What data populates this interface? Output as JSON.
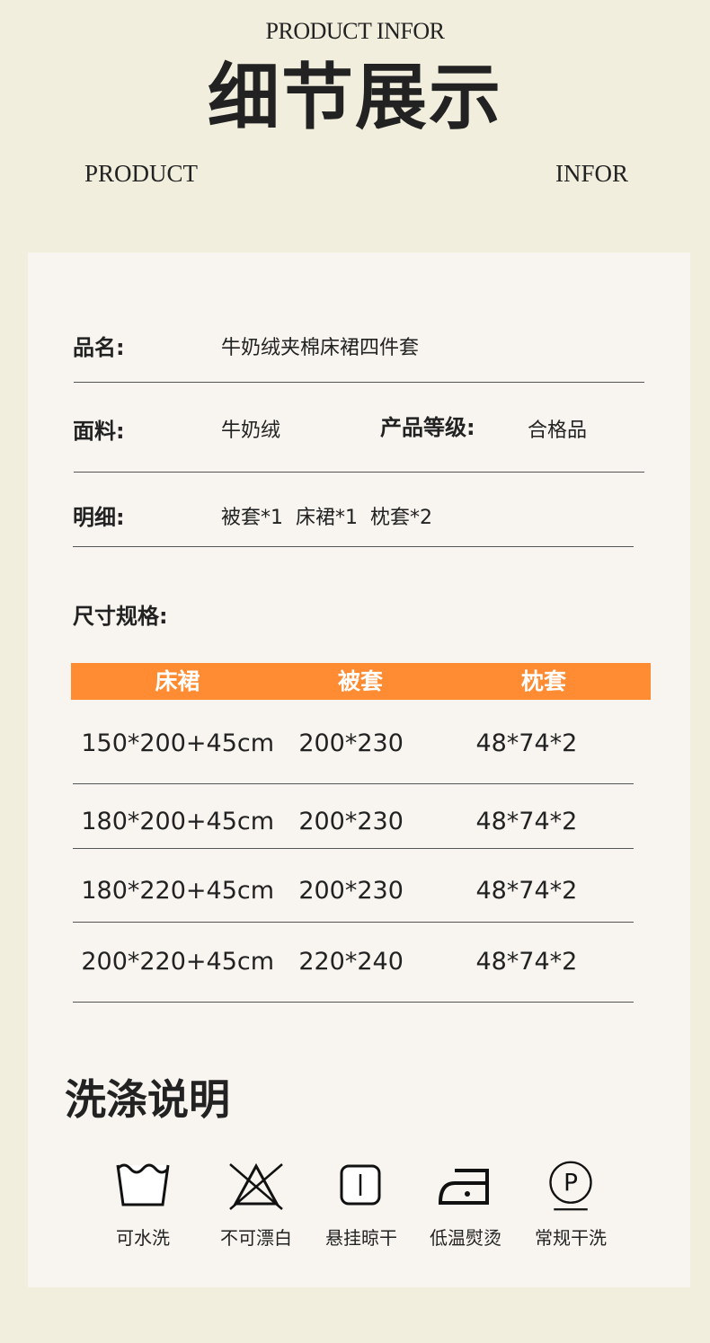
{
  "header": {
    "subtitle_en": "PRODUCT INFOR",
    "title": "细节展示",
    "left_en": "PRODUCT",
    "right_en": "INFOR"
  },
  "info": {
    "name_label": "品名:",
    "name_value": "牛奶绒夹棉床裙四件套",
    "fabric_label": "面料:",
    "fabric_value": "牛奶绒",
    "grade_label": "产品等级:",
    "grade_value": "合格品",
    "detail_label": "明细:",
    "detail_value": "被套*1  床裙*1  枕套*2",
    "size_label": "尺寸规格:"
  },
  "size_table": {
    "headers": [
      "床裙",
      "被套",
      "枕套"
    ],
    "rows": [
      [
        "150*200+45cm",
        "200*230",
        "48*74*2"
      ],
      [
        "180*200+45cm",
        "200*230",
        "48*74*2"
      ],
      [
        "180*220+45cm",
        "200*230",
        "48*74*2"
      ],
      [
        "200*220+45cm",
        "220*240",
        "48*74*2"
      ]
    ]
  },
  "care": {
    "title": "洗涤说明",
    "items": [
      {
        "icon": "washable-icon",
        "label": "可水洗"
      },
      {
        "icon": "no-bleach-icon",
        "label": "不可漂白"
      },
      {
        "icon": "hang-dry-icon",
        "label": "悬挂晾干"
      },
      {
        "icon": "low-iron-icon",
        "label": "低温熨烫"
      },
      {
        "icon": "dry-clean-p-icon",
        "label": "常规干洗"
      }
    ]
  },
  "colors": {
    "background": "#f1eedd",
    "card": "#f8f5f0",
    "accent": "#ff8c33"
  }
}
